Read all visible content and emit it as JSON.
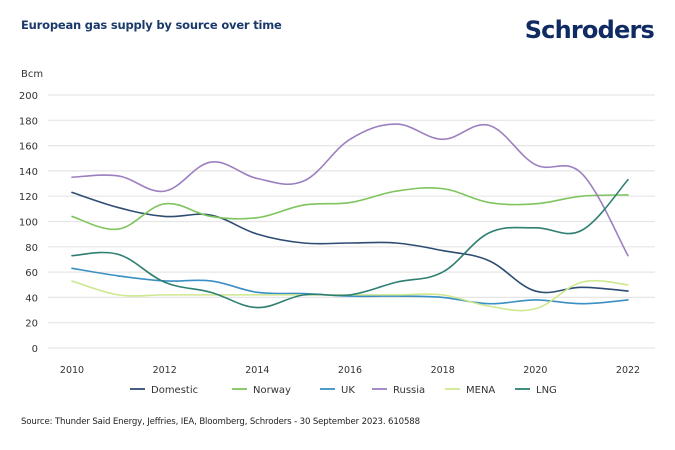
{
  "header": {
    "title": "European gas supply by source over time",
    "logo": "Schroders"
  },
  "footer": {
    "source": "Source: Thunder Said Energy, Jeffries, IEA, Bloomberg, Schroders - 30 September 2023. 610588"
  },
  "chart_data": {
    "type": "line",
    "title": "European gas supply by source over time",
    "xlabel": "",
    "ylabel": "Bcm",
    "x": [
      2010,
      2011,
      2012,
      2013,
      2014,
      2015,
      2016,
      2017,
      2018,
      2019,
      2020,
      2021,
      2022
    ],
    "x_tick_labels": [
      "2010",
      "2012",
      "2014",
      "2016",
      "2018",
      "2020",
      "2022"
    ],
    "x_ticks": [
      2010,
      2012,
      2014,
      2016,
      2018,
      2020,
      2022
    ],
    "xlim": [
      2010,
      2022
    ],
    "ylim": [
      0,
      200
    ],
    "y_ticks": [
      0,
      20,
      40,
      60,
      80,
      100,
      120,
      140,
      160,
      180,
      200
    ],
    "y_tick_labels": [
      "0",
      "20",
      "40",
      "60",
      "80",
      "100",
      "120",
      "140",
      "160",
      "180",
      "200"
    ],
    "grid": "horizontal",
    "legend_position": "bottom",
    "smooth": true,
    "series": [
      {
        "name": "Domestic",
        "color": "#2e4d73",
        "values": [
          123,
          111,
          104,
          105,
          90,
          83,
          83,
          83,
          77,
          69,
          45,
          48,
          45
        ]
      },
      {
        "name": "Norway",
        "color": "#7fc45c",
        "values": [
          104,
          94,
          114,
          104,
          103,
          113,
          115,
          124,
          126,
          115,
          114,
          120,
          121
        ]
      },
      {
        "name": "UK",
        "color": "#3a8fc4",
        "values": [
          63,
          57,
          53,
          53,
          44,
          43,
          41,
          41,
          40,
          35,
          38,
          35,
          38
        ]
      },
      {
        "name": "Russia",
        "color": "#9b7fc0",
        "values": [
          135,
          136,
          124,
          147,
          134,
          132,
          165,
          177,
          165,
          176,
          145,
          138,
          73
        ]
      },
      {
        "name": "MENA",
        "color": "#cde88e",
        "values": [
          53,
          42,
          42,
          42,
          42,
          42,
          42,
          42,
          42,
          33,
          31,
          52,
          50
        ]
      },
      {
        "name": "LNG",
        "color": "#2e7f72",
        "values": [
          73,
          74,
          52,
          44,
          32,
          42,
          42,
          52,
          60,
          91,
          95,
          93,
          133
        ]
      }
    ]
  }
}
